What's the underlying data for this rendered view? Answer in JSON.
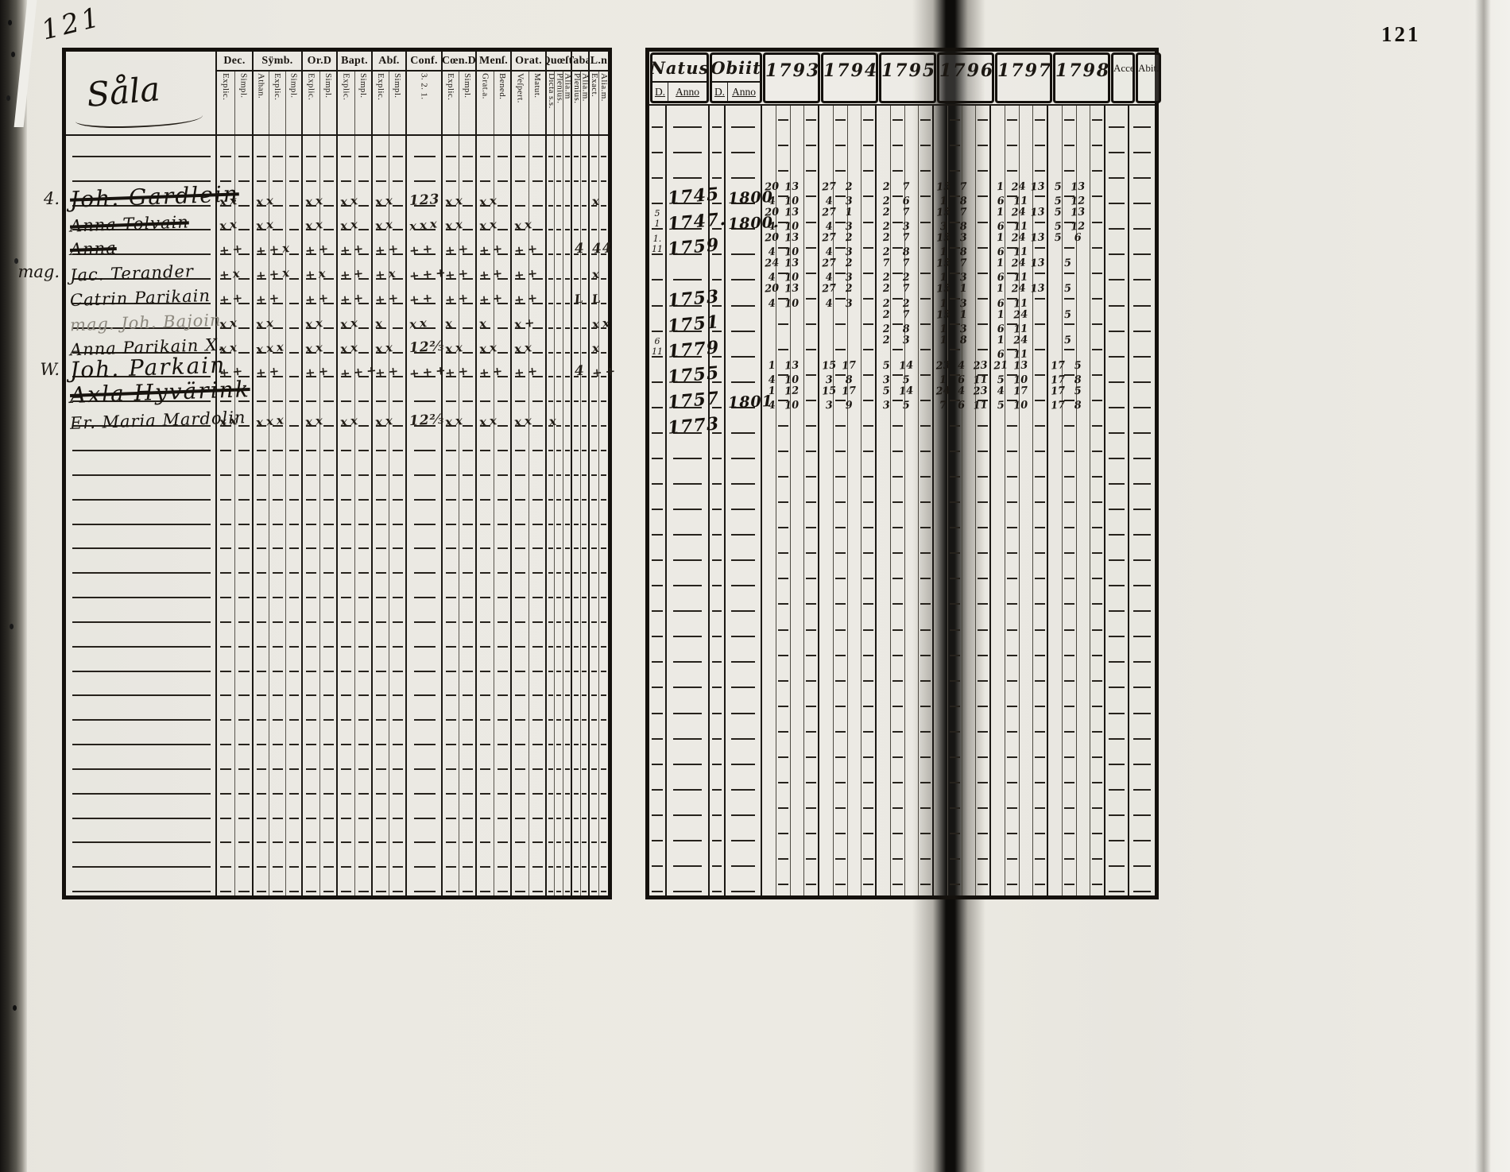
{
  "page": {
    "handwritten_page_number": "121",
    "printed_page_number": "121"
  },
  "left_page": {
    "title": "Såla",
    "column_groups": [
      {
        "label": "Dec.",
        "subs": [
          "Explic.",
          "Simpl."
        ]
      },
      {
        "label": "Sÿmb.",
        "subs": [
          "Athan.",
          "Explic.",
          "Simpl."
        ]
      },
      {
        "label": "Or.D",
        "subs": [
          "Explic.",
          "Simpl."
        ]
      },
      {
        "label": "Bapt.",
        "subs": [
          "Explic.",
          "Simpl."
        ]
      },
      {
        "label": "Abſ.",
        "subs": [
          "Explic.",
          "Simpl."
        ]
      },
      {
        "label": "Conf.",
        "subs": [
          "3. 2. 1."
        ]
      },
      {
        "label": "Cœn.D",
        "subs": [
          "Explic.",
          "Simpl."
        ]
      },
      {
        "label": "Menſ.",
        "subs": [
          "Grat.a.",
          "Bened."
        ]
      },
      {
        "label": "Orat.",
        "subs": [
          "Veſpert.",
          "Matut."
        ]
      },
      {
        "label": "Quœſt.",
        "subs": [
          "Dicta s.s.",
          "Plenius.",
          "Alia.m"
        ]
      },
      {
        "label": "Tabæ",
        "subs": [
          "Plenius.",
          "Alia.m."
        ]
      },
      {
        "label": "L.n",
        "subs": [
          "Exact.",
          "Alia.m."
        ]
      }
    ],
    "entries": [
      {
        "margin": "4.",
        "name": "Joh. Gardlein",
        "struck": true,
        "faint": false,
        "size": "lg",
        "marks": [
          "xx",
          "xx",
          "xx",
          "xx",
          "xx",
          "123",
          "xx",
          "xx",
          "",
          "",
          "",
          "x"
        ]
      },
      {
        "margin": "",
        "name": "Anna Tolvain",
        "struck": true,
        "faint": false,
        "size": "md",
        "marks": [
          "xx",
          "xx",
          "xx",
          "xx",
          "xx",
          "xxx",
          "xx",
          "xx",
          "xx",
          "",
          "",
          ""
        ]
      },
      {
        "margin": "",
        "name": "Anna",
        "struck": true,
        "faint": false,
        "size": "md",
        "marks": [
          "++",
          "++x",
          "++",
          "++",
          "++",
          "++",
          "++",
          "++",
          "++",
          "",
          "4",
          "44"
        ]
      },
      {
        "margin": "mag.",
        "name": "Jac. Terander",
        "struck": false,
        "faint": false,
        "size": "md",
        "marks": [
          "+x",
          "++x",
          "+x",
          "++",
          "+x",
          "+++",
          "++",
          "++",
          "++",
          "",
          "",
          "x"
        ]
      },
      {
        "margin": "",
        "name": "Catrin Parikain",
        "struck": false,
        "faint": false,
        "size": "md",
        "marks": [
          "++",
          "++",
          "++",
          "++",
          "++",
          "++",
          "++",
          "++",
          "++",
          "",
          "L",
          "L"
        ]
      },
      {
        "margin": "",
        "name": "mag. Joh. Bajoin",
        "struck": false,
        "faint": true,
        "size": "md",
        "marks": [
          "xx",
          "xx",
          "xx",
          "xx",
          "x",
          "xx",
          "x",
          "x",
          "x+",
          "",
          "",
          "xx"
        ]
      },
      {
        "margin": "",
        "name": "Anna Parikain X.",
        "struck": false,
        "faint": false,
        "size": "md",
        "marks": [
          "xx",
          "xxx",
          "xx",
          "xx",
          "xx",
          "12⅔",
          "xx",
          "xx",
          "xx",
          "",
          "",
          "x"
        ]
      },
      {
        "margin": "W.",
        "name": "Joh. Parkain",
        "struck": false,
        "faint": false,
        "size": "lg",
        "marks": [
          "++",
          "++",
          "++",
          "+++",
          "++",
          "+++",
          "++",
          "++",
          "++",
          "",
          "4",
          "++"
        ]
      },
      {
        "margin": "",
        "name": "Axla Hyvärink",
        "struck": true,
        "faint": false,
        "size": "lg",
        "marks": [
          "",
          "",
          "",
          "",
          "",
          "",
          "",
          "",
          "",
          "",
          "",
          ""
        ]
      },
      {
        "margin": "",
        "name": "Er. Maria Mardolin",
        "struck": false,
        "faint": false,
        "size": "md",
        "marks": [
          "xx",
          "xxx",
          "xx",
          "xx",
          "xx",
          "12⅔",
          "xx",
          "xx",
          "xx",
          "x",
          "",
          ""
        ]
      }
    ]
  },
  "right_page": {
    "natus_label": "Natus",
    "obiit_label": "Obiit",
    "d_label": "D.",
    "anno_label": "Anno",
    "years": [
      "1793",
      "1794",
      "1795",
      "1796.",
      "1797",
      "1798."
    ],
    "acces_label": "Acceſ.",
    "abit_label": "Abit.",
    "entries": [
      {
        "nd": "",
        "natus": "1745",
        "od": "",
        "obiit": "1800",
        "years": [
          [
            "20 13",
            "4 10"
          ],
          [
            "27 2",
            "4 3"
          ],
          [
            "2 7",
            "2 6"
          ],
          [
            "15 7",
            "1 8"
          ],
          [
            "1 24 13",
            "6 11"
          ],
          [
            "5 13",
            "5 12"
          ]
        ]
      },
      {
        "nd": "5 1",
        "natus": "1747.",
        "od": "",
        "obiit": "1800.",
        "years": [
          [
            "20 13",
            "4 10"
          ],
          [
            "27 1",
            "4 3"
          ],
          [
            "2 7",
            "2 3"
          ],
          [
            "15 7",
            "3 8"
          ],
          [
            "1 24 13",
            "6 11"
          ],
          [
            "5 13",
            "5 12"
          ]
        ]
      },
      {
        "nd": "1. 11",
        "natus": "1759",
        "od": "",
        "obiit": "",
        "years": [
          [
            "20 13",
            "4 10"
          ],
          [
            "27 2",
            "4 3"
          ],
          [
            "2 7",
            "2 8"
          ],
          [
            "15 3",
            "1 8"
          ],
          [
            "1 24 13",
            "6 11"
          ],
          [
            "5 6",
            ""
          ]
        ]
      },
      {
        "nd": "",
        "natus": "",
        "od": "",
        "obiit": "",
        "years": [
          [
            "24 13",
            "4 10"
          ],
          [
            "27 2",
            "4 3"
          ],
          [
            "7 7",
            "2 2"
          ],
          [
            "15 7",
            "1 3"
          ],
          [
            "1 24 13",
            "6 11"
          ],
          [
            "5",
            ""
          ]
        ]
      },
      {
        "nd": "",
        "natus": "1753",
        "od": "",
        "obiit": "",
        "years": [
          [
            "20 13",
            "4 10"
          ],
          [
            "27 2",
            "4 3"
          ],
          [
            "2 7",
            "2 2"
          ],
          [
            "15 1",
            "1 3"
          ],
          [
            "1 24 13",
            "6 11"
          ],
          [
            "5",
            ""
          ]
        ]
      },
      {
        "nd": "",
        "natus": "1751",
        "od": "",
        "obiit": "",
        "years": [
          [
            "",
            ""
          ],
          [
            "",
            ""
          ],
          [
            "2 7",
            "2 8"
          ],
          [
            "15 1",
            "1 3"
          ],
          [
            "1 24",
            "6 11"
          ],
          [
            "5",
            ""
          ]
        ]
      },
      {
        "nd": "6 11",
        "natus": "1779",
        "od": "",
        "obiit": "",
        "years": [
          [
            "",
            ""
          ],
          [
            "",
            ""
          ],
          [
            "2 3",
            ""
          ],
          [
            "1 8",
            ""
          ],
          [
            "1 24",
            "6 11"
          ],
          [
            "5",
            ""
          ]
        ]
      },
      {
        "nd": "",
        "natus": "1755",
        "od": "",
        "obiit": "",
        "years": [
          [
            "1 13",
            "4 10"
          ],
          [
            "15 17",
            "3 8"
          ],
          [
            "5 14",
            "3 5"
          ],
          [
            "23 4 23",
            "1 6 11"
          ],
          [
            "21 13",
            "5 10"
          ],
          [
            "17 5",
            "17 8"
          ]
        ]
      },
      {
        "nd": "",
        "natus": "1757",
        "od": "",
        "obiit": "1801",
        "years": [
          [
            "1 12",
            "4 10"
          ],
          [
            "15 17",
            "3 9"
          ],
          [
            "5 14",
            "3 5"
          ],
          [
            "24 4 23",
            "7 6 11"
          ],
          [
            "4 17",
            "5 10"
          ],
          [
            "17 5",
            "17 8"
          ]
        ]
      },
      {
        "nd": "",
        "natus": "1773",
        "od": "",
        "obiit": "",
        "years": [
          [
            "",
            ""
          ],
          [
            "",
            ""
          ],
          [
            "",
            ""
          ],
          [
            "",
            ""
          ],
          [
            "",
            ""
          ],
          [
            "",
            ""
          ]
        ]
      }
    ]
  }
}
